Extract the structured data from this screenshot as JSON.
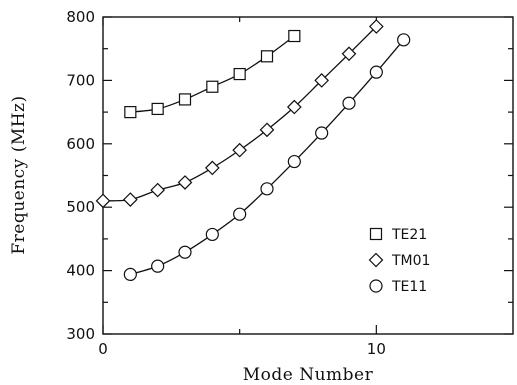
{
  "chart_data": {
    "type": "line",
    "title": "",
    "xlabel": "Mode Number",
    "ylabel": "Frequency  (MHz)",
    "xlim": [
      0,
      15
    ],
    "ylim": [
      300,
      800
    ],
    "xticks": [
      0,
      10
    ],
    "yticks": [
      300,
      400,
      500,
      600,
      700,
      800
    ],
    "grid": false,
    "legend_position": "bottom-right",
    "series": [
      {
        "name": "TE21",
        "marker": "square",
        "x": [
          1,
          2,
          3,
          4,
          5,
          6,
          7
        ],
        "y": [
          650,
          655,
          670,
          690,
          710,
          738,
          770
        ]
      },
      {
        "name": "TM01",
        "marker": "diamond",
        "x": [
          0,
          1,
          2,
          3,
          4,
          5,
          6,
          7,
          8,
          9,
          10
        ],
        "y": [
          510,
          512,
          527,
          539,
          562,
          590,
          622,
          658,
          700,
          742,
          785
        ]
      },
      {
        "name": "TE11",
        "marker": "circle",
        "x": [
          1,
          2,
          3,
          4,
          5,
          6,
          7,
          8,
          9,
          10,
          11
        ],
        "y": [
          394,
          407,
          429,
          457,
          489,
          529,
          572,
          617,
          664,
          713,
          764
        ]
      }
    ]
  }
}
